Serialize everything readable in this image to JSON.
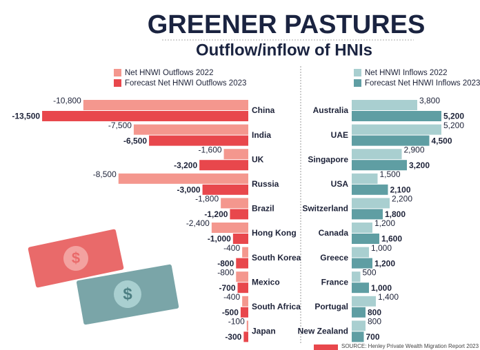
{
  "title": "GREENER PASTURES",
  "subtitle": "Outflow/inflow of HNIs",
  "source": "SOURCE: Henley Private Wealth Migration Report 2023",
  "chart_data": [
    {
      "type": "bar",
      "orientation": "horizontal",
      "categories": [
        "China",
        "India",
        "UK",
        "Russia",
        "Brazil",
        "Hong Kong",
        "South Korea",
        "Mexico",
        "South Africa",
        "Japan"
      ],
      "series": [
        {
          "name": "Net HNWI Outflows 2022",
          "color": "#f4978e",
          "values": [
            -10800,
            -7500,
            -1600,
            -8500,
            -1800,
            -2400,
            -400,
            -800,
            -400,
            -100
          ],
          "value_labels": [
            "-10,800",
            "-7,500",
            "-1,600",
            "-8,500",
            "-1,800",
            "-2,400",
            "-400",
            "-800",
            "-400",
            "-100"
          ]
        },
        {
          "name": "Forecast Net HNWI Outflows 2023",
          "color": "#e8474c",
          "values": [
            -13500,
            -6500,
            -3200,
            -3000,
            -1200,
            -1000,
            -800,
            -700,
            -500,
            -300
          ],
          "value_labels": [
            "-13,500",
            "-6,500",
            "-3,200",
            "-3,000",
            "-1,200",
            "-1,000",
            "-800",
            "-700",
            "-500",
            "-300"
          ]
        }
      ],
      "xlim": [
        -14000,
        0
      ]
    },
    {
      "type": "bar",
      "orientation": "horizontal",
      "categories": [
        "Australia",
        "UAE",
        "Singapore",
        "USA",
        "Switzerland",
        "Canada",
        "Greece",
        "France",
        "Portugal",
        "New Zealand"
      ],
      "series": [
        {
          "name": "Net HNWI Inflows 2022",
          "color": "#a9cfd0",
          "values": [
            3800,
            5200,
            2900,
            1500,
            2200,
            1200,
            1000,
            500,
            1400,
            800
          ],
          "value_labels": [
            "3,800",
            "5,200",
            "2,900",
            "1,500",
            "2,200",
            "1,200",
            "1,000",
            "500",
            "1,400",
            "800"
          ]
        },
        {
          "name": "Forecast Net HNWI Inflows 2023",
          "color": "#5f9ea3",
          "values": [
            5200,
            4500,
            3200,
            2100,
            1800,
            1600,
            1200,
            1000,
            800,
            700
          ],
          "value_labels": [
            "5,200",
            "4,500",
            "3,200",
            "2,100",
            "1,800",
            "1,600",
            "1,200",
            "1,000",
            "800",
            "700"
          ]
        }
      ],
      "xlim": [
        0,
        7000
      ]
    }
  ]
}
